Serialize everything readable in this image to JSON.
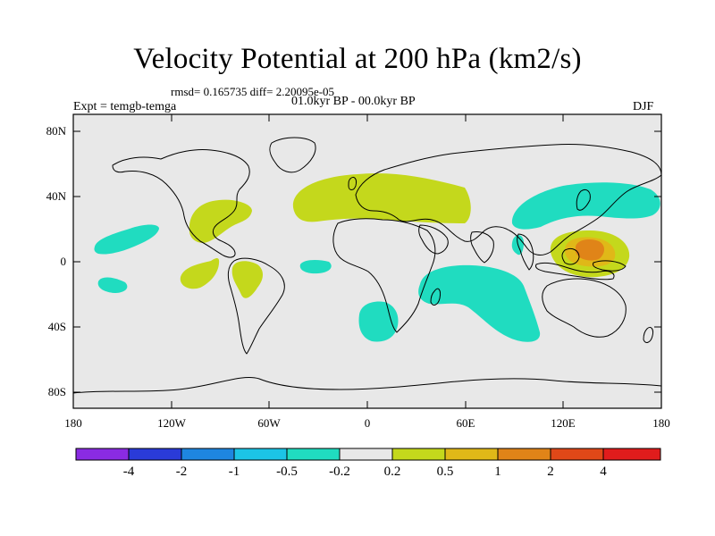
{
  "figure": {
    "title": "Velocity Potential at 200 hPa (km2/s)",
    "stats": "rmsd= 0.165735 diff= 2.20095e-05",
    "period": "01.0kyr BP - 00.0kyr BP",
    "experiment": "Expt = temgb-temga",
    "season": "DJF"
  },
  "axes": {
    "lat_ticks": [
      "80N",
      "40N",
      "0",
      "40S",
      "80S"
    ],
    "lon_ticks": [
      "180",
      "120W",
      "60W",
      "0",
      "60E",
      "120E",
      "180"
    ]
  },
  "colorbar": {
    "levels": [
      "-4",
      "-2",
      "-1",
      "-0.5",
      "-0.2",
      "0.2",
      "0.5",
      "1",
      "2",
      "4"
    ],
    "colors": [
      "#8a2be2",
      "#2a3bd8",
      "#1e86e0",
      "#1cc4e6",
      "#20dcc0",
      "#e8e8e8",
      "#c4d81c",
      "#e0b818",
      "#e08418",
      "#e04818",
      "#e01c1c"
    ]
  },
  "colors": {
    "ocean": "#e8e8e8",
    "positive_weak": "#c4d81c",
    "negative_weak": "#20dcc0",
    "positive_mid": "#e0b818",
    "positive_strong": "#e08418"
  }
}
